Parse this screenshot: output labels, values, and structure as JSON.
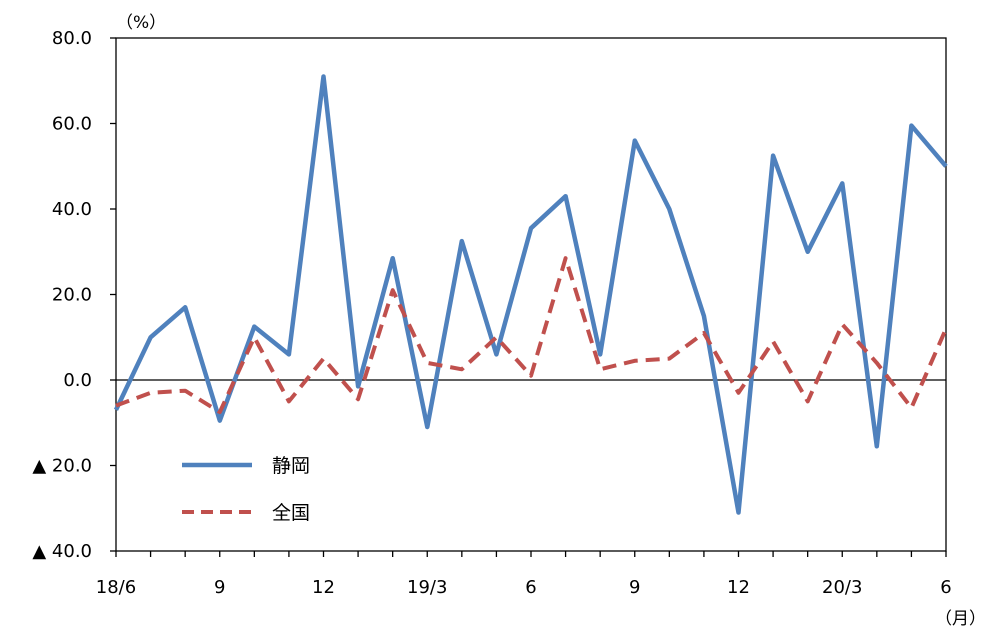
{
  "chart_data": {
    "type": "line",
    "y_unit": "（%）",
    "x_unit": "（月）",
    "ylim": [
      -40,
      80
    ],
    "y_ticks": [
      {
        "value": 80,
        "label": "80.0"
      },
      {
        "value": 60,
        "label": "60.0"
      },
      {
        "value": 40,
        "label": "40.0"
      },
      {
        "value": 20,
        "label": "20.0"
      },
      {
        "value": 0,
        "label": "0.0"
      },
      {
        "value": -20,
        "label": "▲ 20.0"
      },
      {
        "value": -40,
        "label": "▲ 40.0"
      }
    ],
    "x_tick_labels": [
      {
        "index": 0,
        "label": "18/6"
      },
      {
        "index": 3,
        "label": "9"
      },
      {
        "index": 6,
        "label": "12"
      },
      {
        "index": 9,
        "label": "19/3"
      },
      {
        "index": 12,
        "label": "6"
      },
      {
        "index": 15,
        "label": "9"
      },
      {
        "index": 18,
        "label": "12"
      },
      {
        "index": 21,
        "label": "20/3"
      },
      {
        "index": 24,
        "label": "6"
      }
    ],
    "categories": [
      "2018/6",
      "2018/7",
      "2018/8",
      "2018/9",
      "2018/10",
      "2018/11",
      "2018/12",
      "2019/1",
      "2019/2",
      "2019/3",
      "2019/4",
      "2019/5",
      "2019/6",
      "2019/7",
      "2019/8",
      "2019/9",
      "2019/10",
      "2019/11",
      "2019/12",
      "2020/1",
      "2020/2",
      "2020/3",
      "2020/4",
      "2020/5",
      "2020/6"
    ],
    "series": [
      {
        "name": "静岡",
        "color": "#4f81bd",
        "dash": "solid",
        "values": [
          -7,
          10,
          17,
          -9.5,
          12.5,
          6,
          71,
          -1.5,
          28.5,
          -11,
          32.5,
          6,
          35.5,
          43,
          6,
          56,
          40,
          15,
          -31,
          52.5,
          30,
          46,
          -15.5,
          59.5,
          50
        ]
      },
      {
        "name": "全国",
        "color": "#c0504d",
        "dash": "dashed",
        "values": [
          -6,
          -3,
          -2.5,
          -7.5,
          10,
          -5,
          5,
          -4.5,
          21,
          4,
          2.5,
          10,
          1,
          28.5,
          2.5,
          4.5,
          5,
          11,
          -3,
          9,
          -5,
          13,
          4,
          -6.5,
          12
        ]
      }
    ],
    "legend_position": "bottom-left"
  }
}
